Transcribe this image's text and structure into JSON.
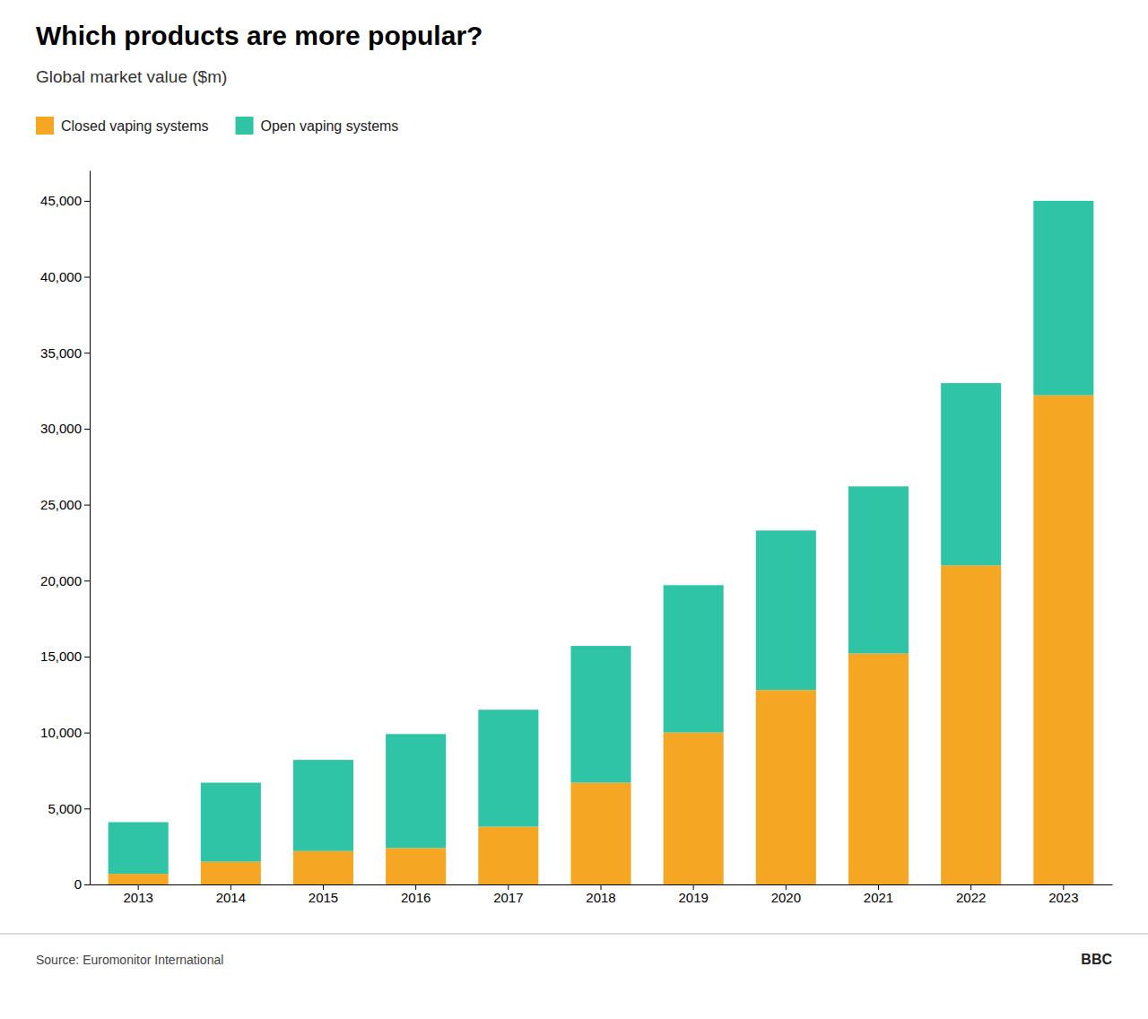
{
  "chart_data": {
    "type": "bar",
    "title": "Which products are more popular?",
    "subtitle": "Global market value ($m)",
    "categories": [
      "2013",
      "2014",
      "2015",
      "2016",
      "2017",
      "2018",
      "2019",
      "2020",
      "2021",
      "2022",
      "2023"
    ],
    "series": [
      {
        "name": "Closed vaping systems",
        "color": "#F5A623",
        "values": [
          700,
          1500,
          2200,
          2400,
          3800,
          6700,
          10000,
          12800,
          15200,
          21000,
          32200
        ]
      },
      {
        "name": "Open vaping systems",
        "color": "#2EC4A5",
        "values": [
          3400,
          5200,
          6000,
          7500,
          7700,
          9000,
          9700,
          10500,
          11000,
          12000,
          12800
        ]
      }
    ],
    "stacked": true,
    "ylim": [
      0,
      47000
    ],
    "yticks": [
      0,
      {
        "value": 5000,
        "label": "5,000"
      },
      {
        "value": 10000,
        "label": "10,000"
      },
      {
        "value": 15000,
        "label": "15,000"
      },
      {
        "value": 20000,
        "label": "20,000"
      },
      {
        "value": 25000,
        "label": "25,000"
      },
      {
        "value": 30000,
        "label": "30,000"
      },
      {
        "value": 35000,
        "label": "35,000"
      },
      {
        "value": 40000,
        "label": "40,000"
      },
      {
        "value": 45000,
        "label": "45,000"
      }
    ],
    "grid": false,
    "legend": "top",
    "annotations": [
      "Source: Euromonitor International",
      "BBC"
    ]
  }
}
